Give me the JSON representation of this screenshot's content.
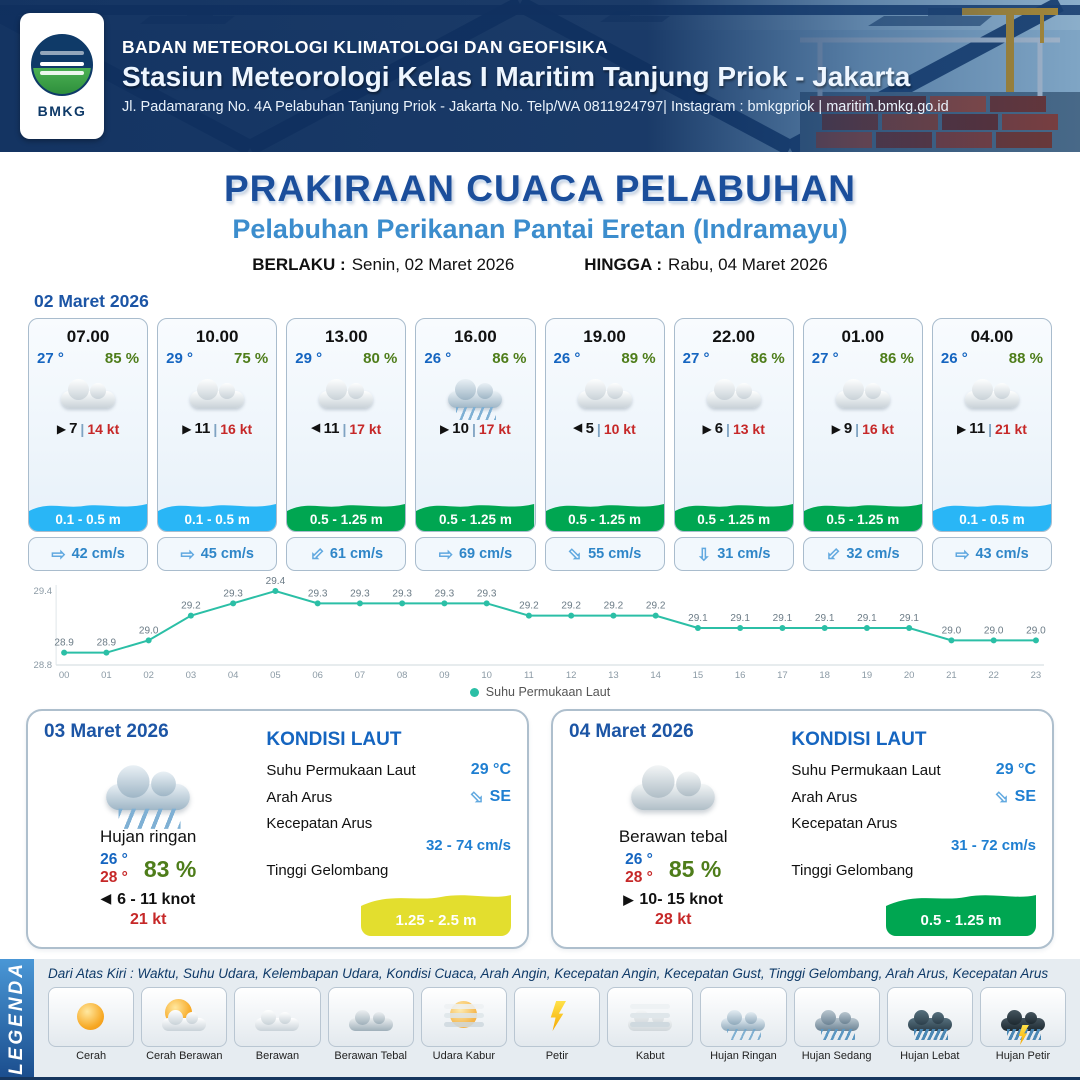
{
  "header": {
    "logo_text": "BMKG",
    "org": "BADAN METEOROLOGI KLIMATOLOGI DAN GEOFISIKA",
    "station": "Stasiun Meteorologi Kelas I Maritim Tanjung Priok - Jakarta",
    "address": "Jl. Padamarang No. 4A Pelabuhan Tanjung Priok - Jakarta No. Telp/WA 0811924797| Instagram : bmkgpriok | maritim.bmkg.go.id"
  },
  "title": {
    "main": "PRAKIRAAN CUACA PELABUHAN",
    "subtitle": "Pelabuhan Perikanan Pantai Eretan (Indramayu)",
    "valid_from_label": "BERLAKU :",
    "valid_from": "Senin, 02 Maret 2026",
    "valid_to_label": "HINGGA :",
    "valid_to": "Rabu, 04 Maret 2026"
  },
  "labels": {
    "wind_sep": "|"
  },
  "hourly_date": "02 Maret 2026",
  "hourly": [
    {
      "time": "07.00",
      "temp": "27 °",
      "rh": "85 %",
      "icon": "berawan",
      "wind_arrow": "▶",
      "wind_rot": "0",
      "wind": "7",
      "gust": "14 kt",
      "wave": "0.1 - 0.5 m",
      "wave_variant": "low",
      "cur_arrow": "⇨",
      "cur_rot": "0",
      "current": "42 cm/s"
    },
    {
      "time": "10.00",
      "temp": "29 °",
      "rh": "75 %",
      "icon": "berawan",
      "wind_arrow": "▶",
      "wind_rot": "0",
      "wind": "11",
      "gust": "16 kt",
      "wave": "0.1 - 0.5 m",
      "wave_variant": "low",
      "cur_arrow": "⇨",
      "cur_rot": "0",
      "current": "45 cm/s"
    },
    {
      "time": "13.00",
      "temp": "29 °",
      "rh": "80 %",
      "icon": "berawan",
      "wind_arrow": "▶",
      "wind_rot": "180",
      "wind": "11",
      "gust": "17 kt",
      "wave": "0.5 - 1.25 m",
      "wave_variant": "mod",
      "cur_arrow": "⇨",
      "cur_rot": "135",
      "current": "61 cm/s"
    },
    {
      "time": "16.00",
      "temp": "26 °",
      "rh": "86 %",
      "icon": "hujan-ringan",
      "wind_arrow": "▶",
      "wind_rot": "0",
      "wind": "10",
      "gust": "17 kt",
      "wave": "0.5 - 1.25 m",
      "wave_variant": "mod",
      "cur_arrow": "⇨",
      "cur_rot": "0",
      "current": "69 cm/s"
    },
    {
      "time": "19.00",
      "temp": "26 °",
      "rh": "89 %",
      "icon": "berawan",
      "wind_arrow": "▶",
      "wind_rot": "180",
      "wind": "5",
      "gust": "10 kt",
      "wave": "0.5 - 1.25 m",
      "wave_variant": "mod",
      "cur_arrow": "⇨",
      "cur_rot": "45",
      "current": "55 cm/s"
    },
    {
      "time": "22.00",
      "temp": "27 °",
      "rh": "86 %",
      "icon": "berawan",
      "wind_arrow": "▶",
      "wind_rot": "0",
      "wind": "6",
      "gust": "13 kt",
      "wave": "0.5 - 1.25 m",
      "wave_variant": "mod",
      "cur_arrow": "⇨",
      "cur_rot": "90",
      "current": "31 cm/s"
    },
    {
      "time": "01.00",
      "temp": "27 °",
      "rh": "86 %",
      "icon": "berawan",
      "wind_arrow": "▶",
      "wind_rot": "0",
      "wind": "9",
      "gust": "16 kt",
      "wave": "0.5 - 1.25 m",
      "wave_variant": "mod",
      "cur_arrow": "⇨",
      "cur_rot": "135",
      "current": "32 cm/s"
    },
    {
      "time": "04.00",
      "temp": "26 °",
      "rh": "88 %",
      "icon": "berawan",
      "wind_arrow": "▶",
      "wind_rot": "0",
      "wind": "11",
      "gust": "21 kt",
      "wave": "0.1 - 0.5 m",
      "wave_variant": "low",
      "cur_arrow": "⇨",
      "cur_rot": "0",
      "current": "43 cm/s"
    }
  ],
  "chart_data": {
    "type": "line",
    "series_label": "Suhu Permukaan Laut",
    "x": [
      "00",
      "01",
      "02",
      "03",
      "04",
      "05",
      "06",
      "07",
      "08",
      "09",
      "10",
      "11",
      "12",
      "13",
      "14",
      "15",
      "16",
      "17",
      "18",
      "19",
      "20",
      "21",
      "22",
      "23"
    ],
    "values": [
      28.9,
      28.9,
      29.0,
      29.2,
      29.3,
      29.4,
      29.3,
      29.3,
      29.3,
      29.3,
      29.3,
      29.2,
      29.2,
      29.2,
      29.2,
      29.1,
      29.1,
      29.1,
      29.1,
      29.1,
      29.1,
      29.0,
      29.0,
      29.0
    ],
    "ylim": [
      28.8,
      29.4
    ],
    "unit": "°C",
    "line_color": "#2bbfa6",
    "legend_position": "bottom",
    "grid": false
  },
  "sea_labels": {
    "heading": "KONDISI LAUT",
    "sst": "Suhu Permukaan Laut",
    "dir": "Arah Arus",
    "current": "Kecepatan Arus",
    "wave": "Tinggi Gelombang"
  },
  "daily": [
    {
      "date": "03 Maret 2026",
      "icon": "hujan-ringan",
      "condition": "Hujan ringan",
      "temp_min": "26 °",
      "temp_max": "28 °",
      "rh": "83 %",
      "wind_arrow": "▶",
      "wind_rot": "180",
      "wind_range": "6  - 11 knot",
      "gust": "21 kt",
      "sea": {
        "sst": "29 °C",
        "dir_arrow": "⇨",
        "dir_rot": "45",
        "dir": "SE",
        "current": "32 - 74 cm/s",
        "wave": "1.25 - 2.5 m",
        "wave_variant": "high"
      }
    },
    {
      "date": "04 Maret 2026",
      "icon": "berawan-tebal",
      "condition": "Berawan tebal",
      "temp_min": "26 °",
      "temp_max": "28 °",
      "rh": "85 %",
      "wind_arrow": "▶",
      "wind_rot": "0",
      "wind_range": "10- 15 knot",
      "gust": "28 kt",
      "sea": {
        "sst": "29 °C",
        "dir_arrow": "⇨",
        "dir_rot": "45",
        "dir": "SE",
        "current": "31 - 72 cm/s",
        "wave": "0.5 - 1.25 m",
        "wave_variant": "mod"
      }
    }
  ],
  "legend": {
    "ribbon": "LEGENDA",
    "note": "Dari Atas Kiri : Waktu, Suhu Udara, Kelembapan Udara, Kondisi Cuaca, Arah Angin, Kecepatan Angin, Kecepatan Gust, Tinggi Gelombang, Arah Arus, Kecepatan Arus",
    "items": [
      {
        "label": "Cerah",
        "variant": "cerah"
      },
      {
        "label": "Cerah Berawan",
        "variant": "cerah-berawan"
      },
      {
        "label": "Berawan",
        "variant": "berawan"
      },
      {
        "label": "Berawan Tebal",
        "variant": "berawan-tebal"
      },
      {
        "label": "Udara Kabur",
        "variant": "udara-kabur"
      },
      {
        "label": "Petir",
        "variant": "petir"
      },
      {
        "label": "Kabut",
        "variant": "kabut"
      },
      {
        "label": "Hujan Ringan",
        "variant": "hujan-ringan"
      },
      {
        "label": "Hujan Sedang",
        "variant": "hujan-sedang"
      },
      {
        "label": "Hujan Lebat",
        "variant": "hujan-lebat"
      },
      {
        "label": "Hujan Petir",
        "variant": "hujan-petir"
      }
    ]
  },
  "colors": {
    "navy": "#16365e",
    "title_blue": "#1b4e9b",
    "subtitle_blue": "#3c8dcd",
    "temp_blue": "#1565c0",
    "rh_green": "#4e7d1a",
    "gust_red": "#c62828",
    "wave_low": "#29b6f6",
    "wave_mod": "#00a651",
    "wave_high": "#e3de2e",
    "current_blue": "#2f86c8",
    "chart_line": "#2bbfa6"
  }
}
